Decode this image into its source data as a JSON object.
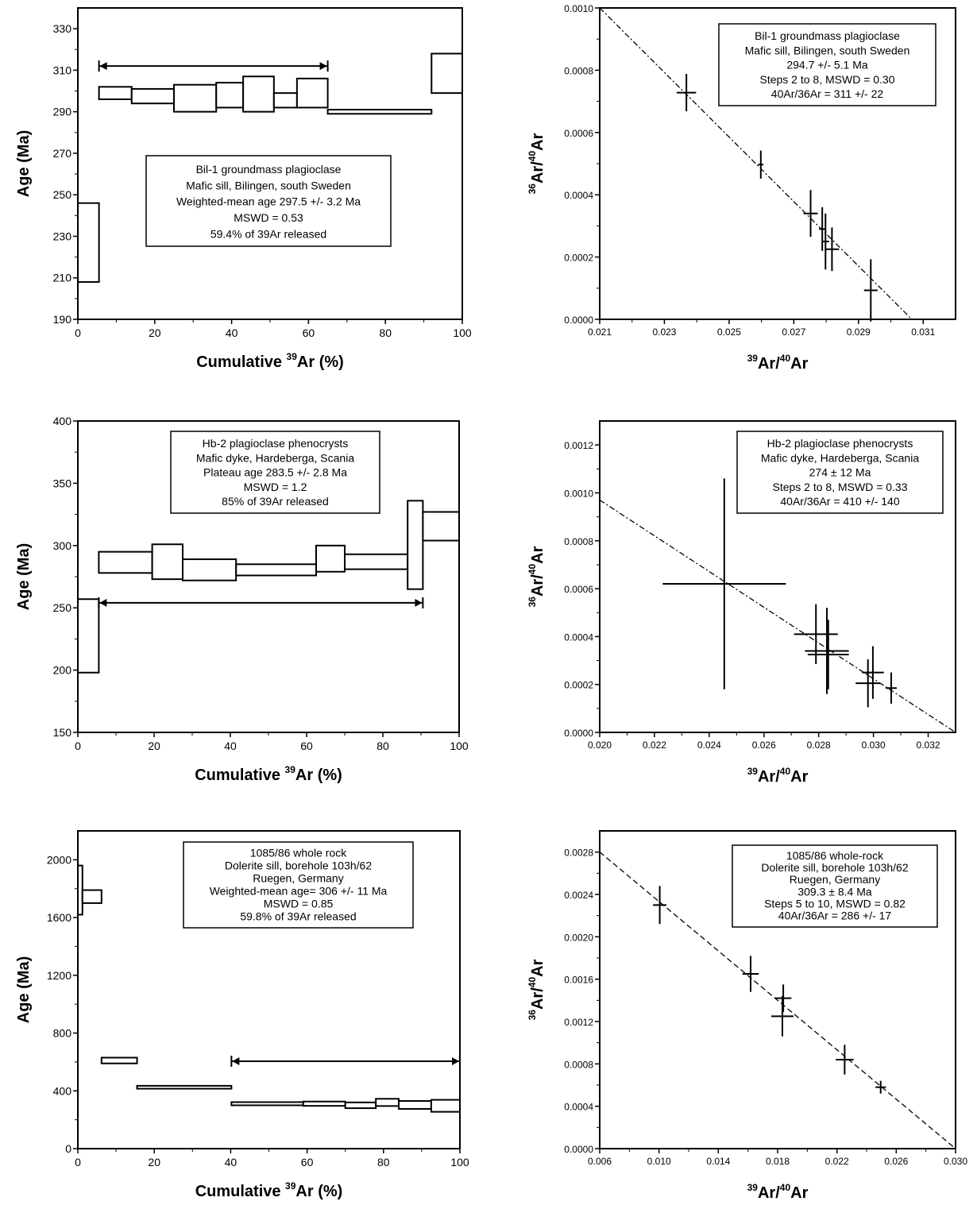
{
  "panels": [
    {
      "id": "a",
      "box_lines": [
        "Bil-1 groundmass plagioclase",
        "Mafic sill, Bilingen, south Sweden",
        "Weighted-mean age 297.5 +/- 3.2 Ma",
        "MSWD = 0.53",
        "59.4% of 39Ar released"
      ]
    },
    {
      "id": "b",
      "box_lines": [
        "Bil-1  groundmass plagioclase",
        "Mafic sill, Bilingen, south Sweden",
        "294.7 +/- 5.1 Ma",
        "Steps 2 to 8, MSWD = 0.30",
        "40Ar/36Ar = 311 +/- 22"
      ]
    },
    {
      "id": "c",
      "box_lines": [
        "Hb-2  plagioclase phenocrysts",
        "Mafic dyke, Hardeberga, Scania",
        "Plateau age 283.5 +/- 2.8 Ma",
        "MSWD = 1.2",
        "85% of 39Ar released"
      ]
    },
    {
      "id": "d",
      "box_lines": [
        "Hb-2  plagioclase phenocrysts",
        "Mafic dyke, Hardeberga, Scania",
        "274 ± 12 Ma",
        "Steps 2 to 8, MSWD = 0.33",
        "40Ar/36Ar = 410 +/- 140"
      ]
    },
    {
      "id": "e",
      "box_lines": [
        "1085/86  whole rock",
        "Dolerite sill, borehole 103h/62",
        "Ruegen, Germany",
        "Weighted-mean age=  306 +/- 11 Ma",
        "MSWD = 0.85",
        "59.8% of 39Ar released"
      ]
    },
    {
      "id": "f",
      "box_lines": [
        "1085/86  whole-rock",
        "Dolerite sill, borehole 103h/62",
        "Ruegen, Germany",
        "309.3 ± 8.4 Ma",
        "Steps 5 to 10, MSWD = 0.82",
        "40Ar/36Ar = 286 +/- 17"
      ]
    }
  ],
  "chart_data": [
    {
      "type": "bar",
      "subtype": "age-spectrum",
      "xlabel": "Cumulative ",
      "xlabel_sup": "39",
      "xlabel_tail": "Ar (%)",
      "ylabel": "Age (Ma)",
      "xlim": [
        0,
        100
      ],
      "ylim": [
        190,
        340
      ],
      "xticks": [
        0,
        20,
        40,
        60,
        80,
        100
      ],
      "yticks": [
        190,
        210,
        230,
        250,
        270,
        290,
        310,
        330
      ],
      "steps": [
        {
          "x0": 0,
          "x1": 5.5,
          "y0": 208,
          "y1": 246
        },
        {
          "x0": 5.5,
          "x1": 14,
          "y0": 296,
          "y1": 302
        },
        {
          "x0": 14,
          "x1": 25,
          "y0": 294,
          "y1": 301
        },
        {
          "x0": 25,
          "x1": 36,
          "y0": 290,
          "y1": 303
        },
        {
          "x0": 36,
          "x1": 43,
          "y0": 292,
          "y1": 304
        },
        {
          "x0": 43,
          "x1": 51,
          "y0": 290,
          "y1": 307
        },
        {
          "x0": 51,
          "x1": 57,
          "y0": 292,
          "y1": 299
        },
        {
          "x0": 57,
          "x1": 65,
          "y0": 292,
          "y1": 306
        },
        {
          "x0": 65,
          "x1": 92,
          "y0": 289,
          "y1": 291
        },
        {
          "x0": 92,
          "x1": 100,
          "y0": 299,
          "y1": 318
        }
      ],
      "plateau": {
        "x0": 5.5,
        "x1": 65,
        "y": 312
      }
    },
    {
      "type": "scatter",
      "subtype": "isochron",
      "xlabel": "Ar/",
      "xlabel_sup1": "39",
      "xlabel_sup2": "40",
      "xlabel_tail": "Ar",
      "ylabel": "Ar/",
      "ylabel_sup1": "36",
      "ylabel_sup2": "40",
      "ylabel_tail": "Ar",
      "xlim": [
        0.021,
        0.032
      ],
      "ylim": [
        0,
        0.001
      ],
      "xticks": [
        0.021,
        0.023,
        0.025,
        0.027,
        0.029,
        0.031
      ],
      "yticks": [
        0,
        0.0002,
        0.0004,
        0.0006,
        0.0008,
        0.001
      ],
      "xtick_labels": [
        "0.021",
        "0.023",
        "0.025",
        "0.027",
        "0.029",
        "0.031"
      ],
      "ytick_labels": [
        "0.0000",
        "0.0002",
        "0.0004",
        "0.0006",
        "0.0008",
        "0.0010"
      ],
      "line": [
        [
          0.021,
          0.001
        ],
        [
          0.03065,
          0
        ]
      ],
      "line_style": "dashdot",
      "points": [
        {
          "x": 0.02368,
          "y": 0.000728,
          "ex": 0.0003,
          "ey": 6e-05
        },
        {
          "x": 0.02598,
          "y": 0.000497,
          "ex": 8e-05,
          "ey": 4.5e-05
        },
        {
          "x": 0.02752,
          "y": 0.00034,
          "ex": 0.00022,
          "ey": 7.5e-05
        },
        {
          "x": 0.02788,
          "y": 0.00029,
          "ex": 0.0001,
          "ey": 7e-05
        },
        {
          "x": 0.02798,
          "y": 0.00025,
          "ex": 0.00011,
          "ey": 9e-05
        },
        {
          "x": 0.02818,
          "y": 0.000225,
          "ex": 0.00022,
          "ey": 7e-05
        },
        {
          "x": 0.02938,
          "y": 9.3e-05,
          "ex": 0.00021,
          "ey": 0.0001
        }
      ]
    },
    {
      "type": "bar",
      "subtype": "age-spectrum",
      "xlabel": "Cumulative ",
      "xlabel_sup": "39",
      "xlabel_tail": "Ar (%)",
      "ylabel": "Age (Ma)",
      "xlim": [
        0,
        100
      ],
      "ylim": [
        150,
        400
      ],
      "xticks": [
        0,
        20,
        40,
        60,
        80,
        100
      ],
      "yticks": [
        150,
        200,
        250,
        300,
        350,
        400
      ],
      "steps": [
        {
          "x0": 0,
          "x1": 5.5,
          "y0": 198,
          "y1": 257
        },
        {
          "x0": 5.5,
          "x1": 19.5,
          "y0": 278,
          "y1": 295
        },
        {
          "x0": 19.5,
          "x1": 27.5,
          "y0": 273,
          "y1": 301
        },
        {
          "x0": 27.5,
          "x1": 41.5,
          "y0": 272,
          "y1": 289
        },
        {
          "x0": 41.5,
          "x1": 62.5,
          "y0": 276,
          "y1": 285
        },
        {
          "x0": 62.5,
          "x1": 70,
          "y0": 279,
          "y1": 300
        },
        {
          "x0": 70,
          "x1": 86.5,
          "y0": 281,
          "y1": 293
        },
        {
          "x0": 86.5,
          "x1": 90.5,
          "y0": 265,
          "y1": 336
        },
        {
          "x0": 90.5,
          "x1": 100,
          "y0": 304,
          "y1": 327
        }
      ],
      "plateau": {
        "x0": 5.5,
        "x1": 90.5,
        "y": 254
      }
    },
    {
      "type": "scatter",
      "subtype": "isochron",
      "xlabel": "Ar/",
      "xlabel_sup1": "39",
      "xlabel_sup2": "40",
      "xlabel_tail": "Ar",
      "ylabel": "Ar/",
      "ylabel_sup1": "36",
      "ylabel_sup2": "40",
      "ylabel_tail": "Ar",
      "xlim": [
        0.02,
        0.033
      ],
      "ylim": [
        0,
        0.0013
      ],
      "xticks": [
        0.02,
        0.022,
        0.024,
        0.026,
        0.028,
        0.03,
        0.032
      ],
      "yticks": [
        0,
        0.0002,
        0.0004,
        0.0006,
        0.0008,
        0.001,
        0.0012
      ],
      "xtick_labels": [
        "0.020",
        "0.022",
        "0.024",
        "0.026",
        "0.028",
        "0.030",
        "0.032"
      ],
      "ytick_labels": [
        "0.0000",
        "0.0002",
        "0.0004",
        "0.0006",
        "0.0008",
        "0.0010",
        "0.0012"
      ],
      "line": [
        [
          0.02,
          0.00097
        ],
        [
          0.033,
          0
        ]
      ],
      "line_style": "dashdot",
      "points": [
        {
          "x": 0.02455,
          "y": 0.00062,
          "ex": 0.00225,
          "ey": 0.00044
        },
        {
          "x": 0.0279,
          "y": 0.00041,
          "ex": 0.0008,
          "ey": 0.000125
        },
        {
          "x": 0.0283,
          "y": 0.00034,
          "ex": 0.0008,
          "ey": 0.00018
        },
        {
          "x": 0.02835,
          "y": 0.000325,
          "ex": 0.00075,
          "ey": 0.000145
        },
        {
          "x": 0.0298,
          "y": 0.000205,
          "ex": 0.00045,
          "ey": 0.0001
        },
        {
          "x": 0.02998,
          "y": 0.00025,
          "ex": 0.0004,
          "ey": 0.00011
        },
        {
          "x": 0.03065,
          "y": 0.000185,
          "ex": 0.0002,
          "ey": 6.5e-05
        }
      ]
    },
    {
      "type": "bar",
      "subtype": "age-spectrum",
      "xlabel": "Cumulative ",
      "xlabel_sup": "39",
      "xlabel_tail": "Ar (%)",
      "ylabel": "Age (Ma)",
      "xlim": [
        0,
        100
      ],
      "ylim": [
        0,
        2200
      ],
      "xticks": [
        0,
        20,
        40,
        60,
        80,
        100
      ],
      "yticks": [
        0,
        400,
        800,
        1200,
        1600,
        2000
      ],
      "steps": [
        {
          "x0": 0,
          "x1": 1.2,
          "y0": 1620,
          "y1": 1960
        },
        {
          "x0": 1.2,
          "x1": 6.2,
          "y0": 1700,
          "y1": 1790
        },
        {
          "x0": 6.2,
          "x1": 15.5,
          "y0": 590,
          "y1": 630
        },
        {
          "x0": 15.5,
          "x1": 40.2,
          "y0": 415,
          "y1": 435
        },
        {
          "x0": 40.2,
          "x1": 59,
          "y0": 300,
          "y1": 322
        },
        {
          "x0": 59,
          "x1": 70,
          "y0": 296,
          "y1": 326
        },
        {
          "x0": 70,
          "x1": 78,
          "y0": 280,
          "y1": 320
        },
        {
          "x0": 78,
          "x1": 84,
          "y0": 295,
          "y1": 345
        },
        {
          "x0": 84,
          "x1": 92.5,
          "y0": 275,
          "y1": 330
        },
        {
          "x0": 92.5,
          "x1": 100,
          "y0": 255,
          "y1": 338
        }
      ],
      "plateau": {
        "x0": 40.2,
        "x1": 100,
        "y": 605
      }
    },
    {
      "type": "scatter",
      "subtype": "isochron",
      "xlabel": "Ar/",
      "xlabel_sup1": "39",
      "xlabel_sup2": "40",
      "xlabel_tail": "Ar",
      "ylabel": "Ar/",
      "ylabel_sup1": "36",
      "ylabel_sup2": "40",
      "ylabel_tail": "Ar",
      "xlim": [
        0.006,
        0.03
      ],
      "ylim": [
        0,
        0.003
      ],
      "xticks": [
        0.006,
        0.01,
        0.014,
        0.018,
        0.022,
        0.026,
        0.03
      ],
      "yticks": [
        0,
        0.0004,
        0.0008,
        0.0012,
        0.0016,
        0.002,
        0.0024,
        0.0028
      ],
      "xtick_labels": [
        "0.006",
        "0.010",
        "0.014",
        "0.018",
        "0.022",
        "0.026",
        "0.030"
      ],
      "ytick_labels": [
        "0.0000",
        "0.0004",
        "0.0008",
        "0.0012",
        "0.0016",
        "0.0020",
        "0.0024",
        "0.0028"
      ],
      "line": [
        [
          0.006,
          0.0028
        ],
        [
          0.03,
          0
        ]
      ],
      "line_style": "dashed",
      "points": [
        {
          "x": 0.01005,
          "y": 0.0023,
          "ex": 0.00045,
          "ey": 0.00018
        },
        {
          "x": 0.01618,
          "y": 0.00165,
          "ex": 0.00055,
          "ey": 0.00017
        },
        {
          "x": 0.01838,
          "y": 0.00142,
          "ex": 0.00055,
          "ey": 0.00013
        },
        {
          "x": 0.01832,
          "y": 0.00125,
          "ex": 0.00075,
          "ey": 0.00019
        },
        {
          "x": 0.02252,
          "y": 0.00084,
          "ex": 0.0006,
          "ey": 0.00014
        },
        {
          "x": 0.02495,
          "y": 0.00058,
          "ex": 0.00035,
          "ey": 6e-05
        }
      ]
    }
  ]
}
